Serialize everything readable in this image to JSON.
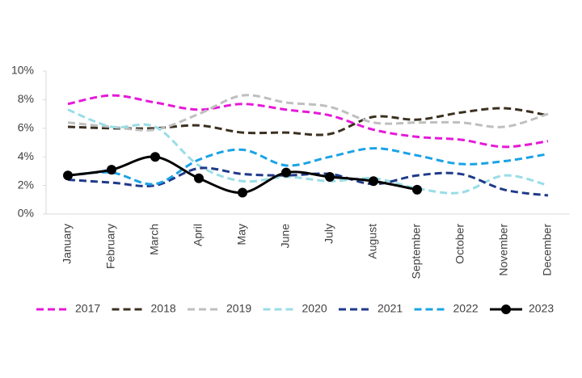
{
  "chart_data": {
    "type": "line",
    "categories": [
      "January",
      "February",
      "March",
      "April",
      "May",
      "June",
      "July",
      "August",
      "September",
      "October",
      "November",
      "December"
    ],
    "series": [
      {
        "name": "2017",
        "color": "#e619d8",
        "dashed": true,
        "markers": false,
        "values": [
          7.7,
          8.3,
          7.8,
          7.3,
          7.7,
          7.3,
          6.9,
          5.9,
          5.4,
          5.2,
          4.7,
          5.1
        ]
      },
      {
        "name": "2018",
        "color": "#3b3020",
        "dashed": true,
        "markers": false,
        "values": [
          6.1,
          6.0,
          6.0,
          6.2,
          5.7,
          5.7,
          5.6,
          6.8,
          6.6,
          7.1,
          7.4,
          6.9
        ]
      },
      {
        "name": "2019",
        "color": "#bfbfbf",
        "dashed": true,
        "markers": false,
        "values": [
          6.4,
          6.1,
          5.9,
          7.0,
          8.3,
          7.8,
          7.5,
          6.4,
          6.4,
          6.4,
          6.1,
          7.0
        ]
      },
      {
        "name": "2020",
        "color": "#99dde6",
        "dashed": true,
        "markers": false,
        "values": [
          7.3,
          6.1,
          6.1,
          3.4,
          2.3,
          2.6,
          2.3,
          2.5,
          1.8,
          1.5,
          2.7,
          2.0
        ]
      },
      {
        "name": "2021",
        "color": "#1f3a8a",
        "dashed": true,
        "markers": false,
        "values": [
          2.4,
          2.2,
          2.0,
          3.2,
          2.8,
          2.7,
          2.8,
          2.1,
          2.7,
          2.8,
          1.7,
          1.3
        ]
      },
      {
        "name": "2022",
        "color": "#1aa3e6",
        "dashed": true,
        "markers": false,
        "values": [
          2.7,
          2.9,
          2.1,
          3.8,
          4.5,
          3.4,
          4.0,
          4.6,
          4.1,
          3.5,
          3.7,
          4.2
        ]
      },
      {
        "name": "2023",
        "color": "#000000",
        "dashed": false,
        "markers": true,
        "values": [
          2.7,
          3.1,
          4.0,
          2.5,
          1.5,
          2.9,
          2.6,
          2.3,
          1.7,
          null,
          null,
          null
        ]
      }
    ],
    "ylim": [
      0,
      10
    ],
    "yticks": [
      {
        "value": 0,
        "label": "0%"
      },
      {
        "value": 2,
        "label": "2%"
      },
      {
        "value": 4,
        "label": "4%"
      },
      {
        "value": 6,
        "label": "6%"
      },
      {
        "value": 8,
        "label": "8%"
      },
      {
        "value": 10,
        "label": "10%"
      }
    ],
    "grid": false,
    "legend": "bottom"
  }
}
